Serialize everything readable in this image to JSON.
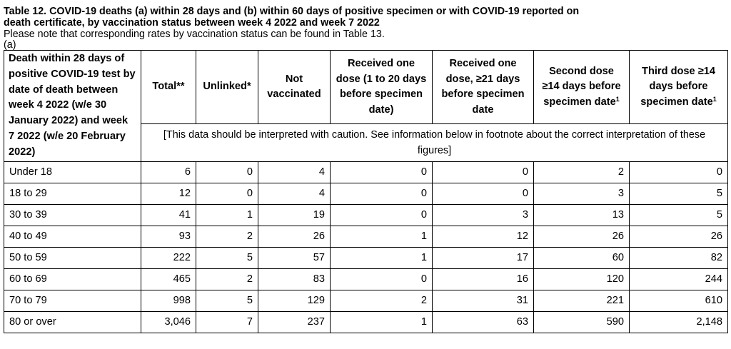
{
  "title": {
    "line1": "Table 12. COVID-19 deaths (a) within 28 days and (b) within 60 days of positive specimen or with COVID-19 reported on",
    "line2": "death certificate, by vaccination status between week 4 2022 and week 7 2022"
  },
  "note": "Please note that corresponding rates by vaccination status can be found in Table 13.",
  "subtitle": "(a)",
  "table": {
    "row_header": "Death within 28 days of positive COVID-19 test by date of death between week 4 2022 (w/e 30 January 2022) and week 7 2022 (w/e 20 February 2022)",
    "columns": {
      "total": "Total**",
      "unlinked": "Unlinked*",
      "not_vaccinated": "Not vaccinated",
      "one_dose_1_20": "Received one dose (1 to 20 days before specimen date)",
      "one_dose_21": "Received one dose, ≥21 days before specimen date",
      "second_dose": "Second dose ≥14 days before specimen date",
      "third_dose": "Third dose ≥14 days before specimen date"
    },
    "footnote_marker": "1",
    "caution": "[This data should be interpreted with caution. See information below in footnote about the correct interpretation of these figures]",
    "rows": [
      {
        "age": "Under 18",
        "total": "6",
        "unlinked": "0",
        "not_vaccinated": "4",
        "one_dose_1_20": "0",
        "one_dose_21": "0",
        "second_dose": "2",
        "third_dose": "0"
      },
      {
        "age": "18 to 29",
        "total": "12",
        "unlinked": "0",
        "not_vaccinated": "4",
        "one_dose_1_20": "0",
        "one_dose_21": "0",
        "second_dose": "3",
        "third_dose": "5"
      },
      {
        "age": "30 to 39",
        "total": "41",
        "unlinked": "1",
        "not_vaccinated": "19",
        "one_dose_1_20": "0",
        "one_dose_21": "3",
        "second_dose": "13",
        "third_dose": "5"
      },
      {
        "age": "40 to 49",
        "total": "93",
        "unlinked": "2",
        "not_vaccinated": "26",
        "one_dose_1_20": "1",
        "one_dose_21": "12",
        "second_dose": "26",
        "third_dose": "26"
      },
      {
        "age": "50 to 59",
        "total": "222",
        "unlinked": "5",
        "not_vaccinated": "57",
        "one_dose_1_20": "1",
        "one_dose_21": "17",
        "second_dose": "60",
        "third_dose": "82"
      },
      {
        "age": "60 to 69",
        "total": "465",
        "unlinked": "2",
        "not_vaccinated": "83",
        "one_dose_1_20": "0",
        "one_dose_21": "16",
        "second_dose": "120",
        "third_dose": "244"
      },
      {
        "age": "70 to 79",
        "total": "998",
        "unlinked": "5",
        "not_vaccinated": "129",
        "one_dose_1_20": "2",
        "one_dose_21": "31",
        "second_dose": "221",
        "third_dose": "610"
      },
      {
        "age": "80 or over",
        "total": "3,046",
        "unlinked": "7",
        "not_vaccinated": "237",
        "one_dose_1_20": "1",
        "one_dose_21": "63",
        "second_dose": "590",
        "third_dose": "2,148"
      }
    ]
  }
}
